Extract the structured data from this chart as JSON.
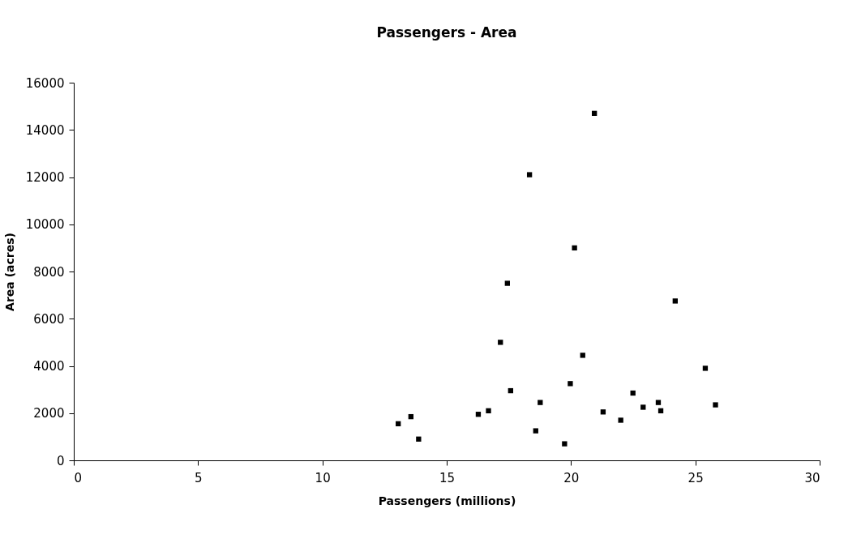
{
  "chart_data": {
    "type": "scatter",
    "title": "Passengers - Area",
    "xlabel": "Passengers (millions)",
    "ylabel": "Area (acres)",
    "x": [
      20.94,
      18.33,
      20.14,
      17.44,
      17.16,
      20.47,
      17.57,
      19.97,
      18.76,
      21.29,
      16.27,
      16.68,
      13.56,
      13.05,
      13.87,
      18.58,
      19.74,
      24.19,
      25.4,
      25.81,
      22.49,
      23.51,
      22.9,
      23.61,
      22.0
    ],
    "values": [
      14700,
      12100,
      9000,
      7500,
      5000,
      4450,
      2950,
      3250,
      2450,
      2050,
      1950,
      2100,
      1850,
      1550,
      900,
      1250,
      700,
      6750,
      3900,
      2350,
      2850,
      2450,
      2250,
      2100,
      1700
    ],
    "color": "#000000",
    "marker": "square",
    "xlim": [
      0,
      30
    ],
    "xticks": [
      0,
      5,
      10,
      15,
      20,
      25,
      30
    ],
    "ylim": [
      0,
      16000
    ],
    "yticks": [
      0,
      2000,
      4000,
      6000,
      8000,
      10000,
      12000,
      14000,
      16000
    ],
    "grid": false
  }
}
